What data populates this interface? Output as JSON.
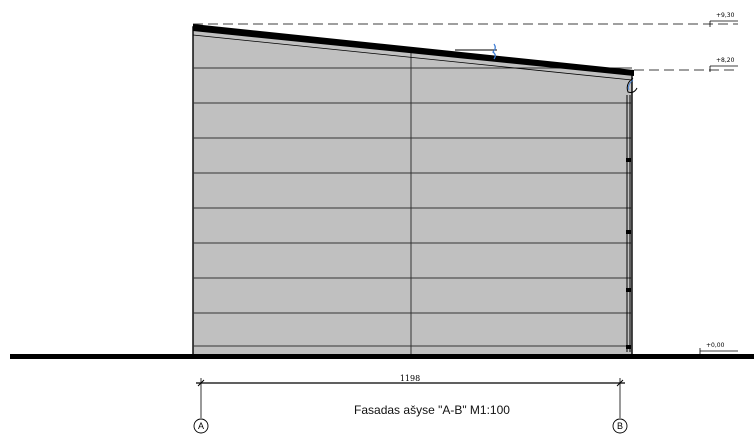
{
  "levels": {
    "top": "+9,30",
    "eave": "+8,20",
    "ground": "+0,00"
  },
  "dimension": "1198",
  "caption": "Fasadas ašyse \"A-B\" M1:100",
  "axes": {
    "left": "A",
    "right": "B"
  },
  "colors": {
    "cladding": "#c0c0c0",
    "line": "#000000",
    "downpipe_accent": "#3a7bd5"
  }
}
